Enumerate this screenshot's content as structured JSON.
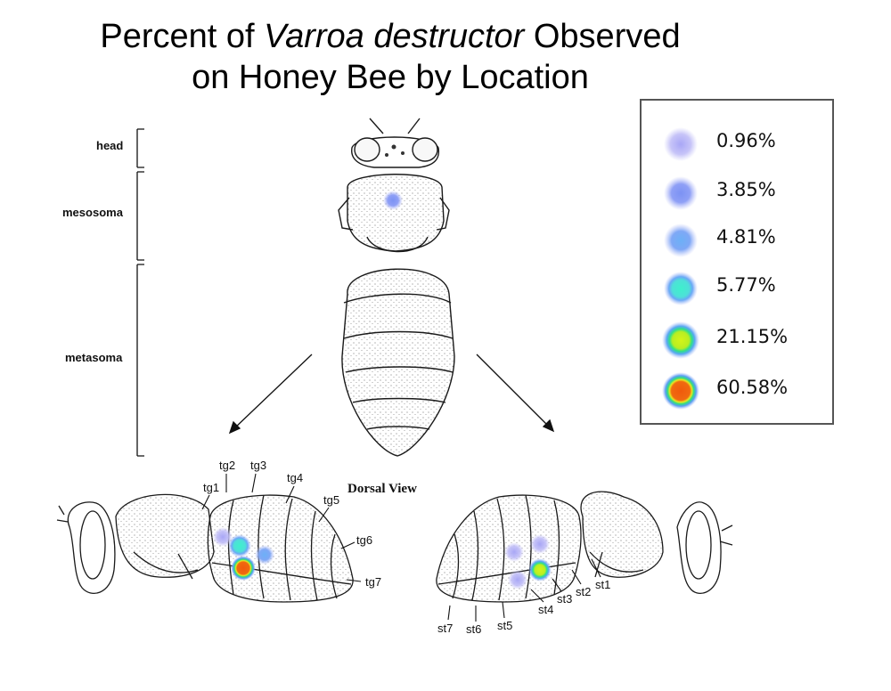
{
  "title": {
    "prefix": "Percent of ",
    "species": "Varroa destructor",
    "suffix": " Observed",
    "line2": "on Honey Bee by Location"
  },
  "body_regions": [
    "head",
    "mesosoma",
    "metasoma"
  ],
  "view_label": "Dorsal View",
  "tergite_labels": [
    "tg1",
    "tg2",
    "tg3",
    "tg4",
    "tg5",
    "tg6",
    "tg7"
  ],
  "sternite_labels": [
    "st1",
    "st2",
    "st3",
    "st4",
    "st5",
    "st6",
    "st7"
  ],
  "legend": [
    {
      "label": "0.96%",
      "level": 0
    },
    {
      "label": "3.85%",
      "level": 1
    },
    {
      "label": "4.81%",
      "level": 2
    },
    {
      "label": "5.77%",
      "level": 3
    },
    {
      "label": "21.15%",
      "level": 4
    },
    {
      "label": "60.58%",
      "level": 5
    }
  ],
  "colors": {
    "level0": "#b8b4f4",
    "level1": "#8fa0f6",
    "level2": "#7fa8f6",
    "level3": "#4ee8d4",
    "level4": "#c8f020",
    "level5": "#f06010",
    "outline": "#1a1a1a",
    "legend_border": "#555555"
  }
}
